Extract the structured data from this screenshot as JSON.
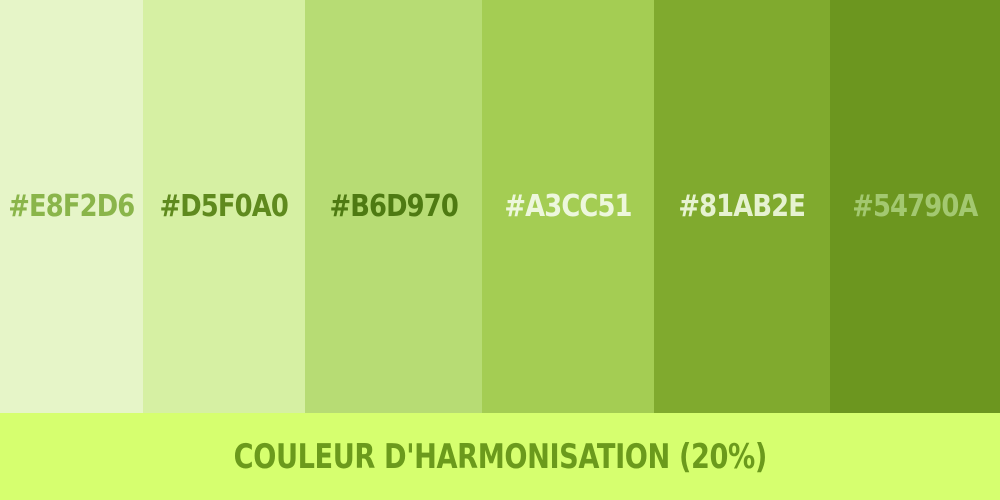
{
  "palette": {
    "swatches": [
      {
        "hex": "#E8F2D6",
        "color": "#e6f5c8",
        "text_color": "#8ab54a"
      },
      {
        "hex": "#D5F0A0",
        "color": "#d6f0a3",
        "text_color": "#5f8a1e"
      },
      {
        "hex": "#B6D970",
        "color": "#b7dc74",
        "text_color": "#4e7a12"
      },
      {
        "hex": "#A3CC51",
        "color": "#a4cd53",
        "text_color": "#edf7dc"
      },
      {
        "hex": "#81AB2E",
        "color": "#80aa2e",
        "text_color": "#e6f2d0"
      },
      {
        "hex": "#54790A",
        "color": "#6c961f",
        "text_color": "#a3c870"
      }
    ]
  },
  "footer": {
    "title": "COULEUR D'HARMONISATION (20%)",
    "background": "#d6ff6f",
    "text_color": "#6b9a1c"
  }
}
